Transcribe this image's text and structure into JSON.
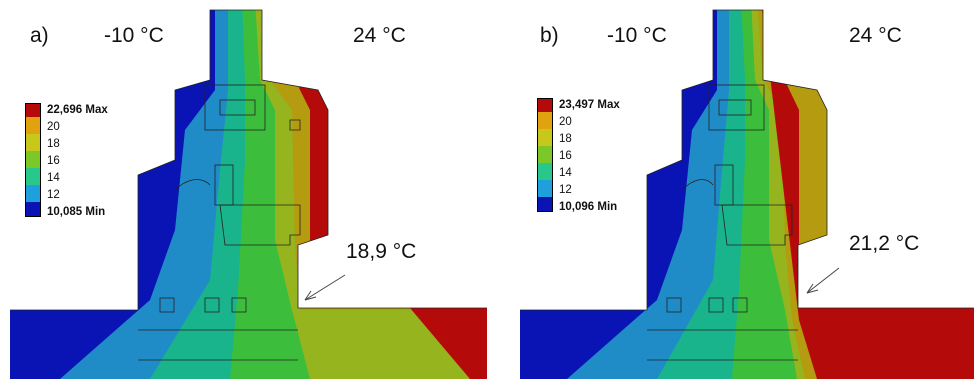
{
  "panels": [
    {
      "id": "a",
      "label": "a)",
      "ambient_cold": "-10 °C",
      "ambient_warm": "24 °C",
      "callout": "18,9 °C",
      "legend": {
        "max": "22,696 Max",
        "ticks": [
          "20",
          "18",
          "16",
          "14",
          "12"
        ],
        "min": "10,085 Min"
      }
    },
    {
      "id": "b",
      "label": "b)",
      "ambient_cold": "-10 °C",
      "ambient_warm": "24 °C",
      "callout": "21,2 °C",
      "legend": {
        "max": "23,497 Max",
        "ticks": [
          "20",
          "18",
          "16",
          "14",
          "12"
        ],
        "min": "10,096 Min"
      }
    }
  ],
  "colors": {
    "band_1": "#0a14b4",
    "band_2": "#1f8cc8",
    "band_3": "#19b48c",
    "band_4": "#3cbe3c",
    "band_5": "#96b41e",
    "band_6": "#b49b0f",
    "band_7": "#b40a0a"
  }
}
